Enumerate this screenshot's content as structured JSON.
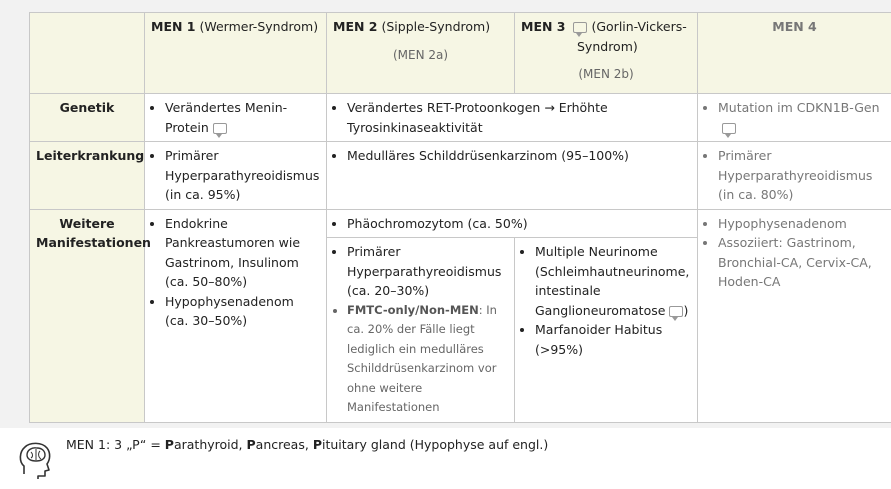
{
  "columns": {
    "men1": {
      "name": "MEN 1",
      "syndrome": "(Wermer-Syndrom)"
    },
    "men2": {
      "name": "MEN 2",
      "syndrome": "(Sipple-Syndrom)",
      "sub": "(MEN 2a)"
    },
    "men3": {
      "name": "MEN 3",
      "syndrome_a": "(Gorlin-Vickers-",
      "syndrome_b": "Syndrom)",
      "sub": "(MEN 2b)"
    },
    "men4": {
      "name": "MEN 4"
    }
  },
  "rows": {
    "genetik": {
      "label": "Genetik",
      "men1": "Verändertes Menin-Protein",
      "men23": "Verändertes RET-Protoonkogen → Erhöhte Tyrosinkinaseaktivität",
      "men4": "Mutation im CDKN1B-Gen"
    },
    "leiter": {
      "label": "Leiterkrankung",
      "men1": "Primärer Hyperparathyreoidismus (in ca. 95%)",
      "men23": "Medulläres Schilddrüsenkarzinom (95–100%)",
      "men4": "Primärer Hyperparathyreoidismus (in ca. 80%)"
    },
    "weitere": {
      "label_a": "Weitere",
      "label_b": "Manifestationen",
      "men1": [
        "Endokrine Pankreastumoren wie Gastrinom, Insulinom (ca. 50–80%)",
        "Hypophysenadenom (ca. 30–50%)"
      ],
      "men23": "Phäochromozytom (ca. 50%)",
      "men2": {
        "item1": "Primärer Hyperparathyreoidismus (ca. 20–30%)",
        "fmtc_label": "FMTC-only/Non-MEN",
        "fmtc_text": ": In ca. 20% der Fälle liegt lediglich ein medulläres Schilddrüsenkarzinom vor ohne weitere Manifestationen"
      },
      "men3": {
        "item1_a": "Multiple Neurinome (Schleimhautneurinome, intestinale Ganglioneuromatose",
        "item1_b": ")",
        "item2": "Marfanoider Habitus (>95%)"
      },
      "men4": [
        "Hypophysenadenom",
        "Assoziiert: Gastrinom, Bronchial-CA, Cervix-CA, Hoden-CA"
      ]
    }
  },
  "mnemonic": {
    "prefix": "MEN 1: 3 „P“ = ",
    "p1_bold": "P",
    "p1_rest": "arathyroid, ",
    "p2_bold": "P",
    "p2_rest": "ancreas, ",
    "p3_bold": "P",
    "p3_rest": "ituitary gland (Hypophyse auf engl.)",
    "icon": "head-brain-icon"
  }
}
